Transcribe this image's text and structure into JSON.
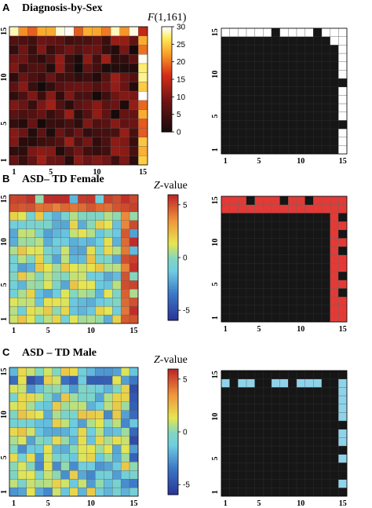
{
  "figure": {
    "panels": [
      {
        "id": "A",
        "letter": "A",
        "title": "Diagnosis-by-Sex",
        "colorbar_title_prefix": "F",
        "colorbar_title_suffix": "(1,161)",
        "colorbar_ticks": [
          "30",
          "25",
          "20",
          "15",
          "10",
          "5",
          "0"
        ],
        "colormap": "hot",
        "mask_on_color": "#ffffff",
        "x_ticks": [
          "1",
          "5",
          "10",
          "15"
        ],
        "y_ticks": [
          "1",
          "5",
          "10",
          "15"
        ],
        "grid": 15
      },
      {
        "id": "B",
        "letter": "B",
        "title": "ASD– TD Female",
        "colorbar_title_prefix": "Z",
        "colorbar_title_suffix": "-value",
        "colorbar_ticks": [
          "5",
          "0",
          "-5"
        ],
        "colormap": "jet",
        "mask_on_color": "#e53935",
        "x_ticks": [
          "1",
          "5",
          "10",
          "15"
        ],
        "y_ticks": [
          "1",
          "5",
          "10",
          "15"
        ],
        "grid": 15
      },
      {
        "id": "C",
        "letter": "C",
        "title": "ASD – TD Male",
        "colorbar_title_prefix": "Z",
        "colorbar_title_suffix": "-value",
        "colorbar_ticks": [
          "5",
          "0",
          "-5"
        ],
        "colormap": "jet",
        "mask_on_color": "#8fd3ea",
        "x_ticks": [
          "1",
          "5",
          "10",
          "15"
        ],
        "y_ticks": [
          "1",
          "5",
          "10",
          "15"
        ],
        "grid": 15
      }
    ]
  },
  "chart_data": [
    {
      "type": "heatmap",
      "panel": "A",
      "title": "Diagnosis-by-Sex",
      "colorbar_label": "F(1,161)",
      "clim": [
        0,
        30
      ],
      "rows": 15,
      "cols": 15,
      "x_ticks": [
        1,
        5,
        10,
        15
      ],
      "y_ticks": [
        1,
        5,
        10,
        15
      ],
      "strong_row": 15,
      "strong_col": 15,
      "significant_row15_cols": [
        1,
        2,
        3,
        4,
        5,
        6,
        8,
        9,
        10,
        11,
        13,
        14,
        15
      ],
      "significant_col15_rows": [
        1,
        2,
        3,
        5,
        6,
        7,
        8,
        10,
        11,
        12,
        13,
        14,
        15
      ]
    },
    {
      "type": "heatmap",
      "panel": "B",
      "title": "ASD– TD Female",
      "colorbar_label": "Z-value",
      "clim": [
        -5,
        5
      ],
      "rows": 15,
      "cols": 15,
      "x_ticks": [
        1,
        5,
        10,
        15
      ],
      "y_ticks": [
        1,
        5,
        10,
        15
      ],
      "significant_row15_cols": [
        1,
        2,
        3,
        5,
        6,
        7,
        9,
        10,
        12,
        13,
        14,
        15
      ],
      "significant_row14_cols": [
        1,
        2,
        3,
        4,
        5,
        6,
        7,
        8,
        9,
        10,
        11,
        12,
        13,
        14,
        15
      ],
      "significant_col15_rows": [
        1,
        2,
        3,
        5,
        7,
        8,
        10,
        12,
        14,
        15
      ],
      "significant_col14_rows": [
        1,
        2,
        3,
        4,
        5,
        6,
        7,
        8,
        9,
        10,
        11,
        12,
        13,
        14,
        15
      ]
    },
    {
      "type": "heatmap",
      "panel": "C",
      "title": "ASD – TD Male",
      "colorbar_label": "Z-value",
      "clim": [
        -5,
        5
      ],
      "rows": 15,
      "cols": 15,
      "x_ticks": [
        1,
        5,
        10,
        15
      ],
      "y_ticks": [
        1,
        5,
        10,
        15
      ],
      "significant_row14_cols": [
        1,
        3,
        4,
        7,
        8,
        10,
        11,
        12
      ],
      "significant_col15_rows": [
        2,
        5,
        7,
        8,
        10,
        11,
        12,
        13,
        14
      ]
    }
  ]
}
